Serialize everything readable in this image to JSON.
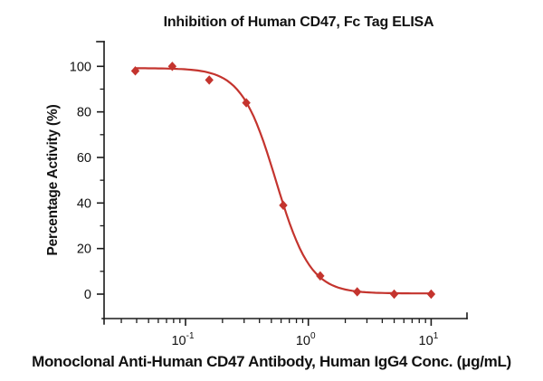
{
  "chart_data": {
    "type": "scatter",
    "title": "Inhibition of Human CD47, Fc Tag ELISA",
    "xlabel": "Monoclonal Anti-Human CD47 Antibody, Human IgG4 Conc. (μg/mL)",
    "ylabel": "Percentage Activity (%)",
    "x_scale": "log",
    "x": [
      0.039,
      0.078,
      0.156,
      0.3125,
      0.625,
      1.25,
      2.5,
      5,
      10
    ],
    "y": [
      98,
      100,
      94,
      84,
      39,
      8,
      1,
      0,
      0
    ],
    "y_ticks": [
      0,
      20,
      40,
      60,
      80,
      100
    ],
    "y_minor_ticks": [
      10,
      30,
      50,
      70,
      90
    ],
    "x_tick_exponents": [
      -1,
      0,
      1
    ],
    "ylim": [
      -10,
      110
    ],
    "xlim_log": [
      -1.66,
      1.3
    ],
    "fit_curve": {
      "model": "4PL",
      "top": 99.2,
      "bottom": 0.3,
      "ic50": 0.545,
      "hill": 3.1
    },
    "marker_shape": "diamond",
    "series_color": "#c4342e",
    "axis_color": "#1a1a1a",
    "grid": "off",
    "legend_position": "none"
  }
}
